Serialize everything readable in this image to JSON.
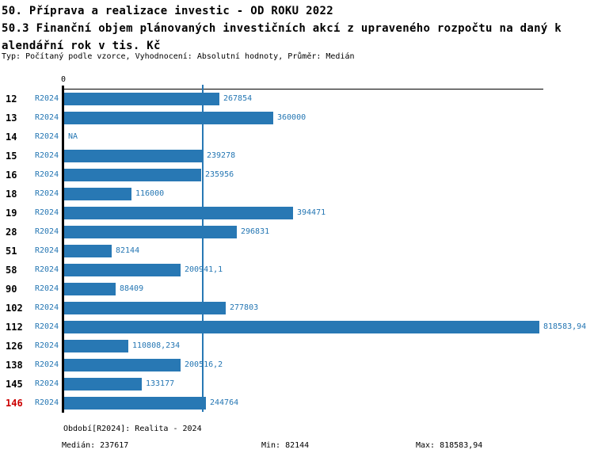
{
  "header": {
    "title_line1": "50. Příprava a realizace investic - OD ROKU 2022",
    "title_line2": "50.3 Finanční objem plánovaných investičních akcí z upraveného rozpočtu na daný k",
    "title_line3": "alendářní rok v tis. Kč",
    "subtitle": "Typ: Počítaný podle vzorce, Vyhodnocení: Absolutní hodnoty, Průměr: Medián"
  },
  "chart_data": {
    "type": "bar",
    "orientation": "horizontal",
    "title": "50. Příprava a realizace investic - OD ROKU 2022 / 50.3 Finanční objem plánovaných investičních akcí z upraveného rozpočtu na daný kalendářní rok v tis. Kč",
    "subtitle": "Typ: Počítaný podle vzorce, Vyhodnocení: Absolutní hodnoty, Průměr: Medián",
    "x_axis_ticks": [
      "0"
    ],
    "xlim": [
      0,
      818583.94
    ],
    "series_name": "R2024",
    "median_value": 237617,
    "min_value": 82144,
    "max_value": 818583.94,
    "x_max_value": 818583.94,
    "reference_line": "median",
    "rows": [
      {
        "id": "12",
        "period": "R2024",
        "value": 267854,
        "label": "267854",
        "highlight": false
      },
      {
        "id": "13",
        "period": "R2024",
        "value": 360000,
        "label": "360000",
        "highlight": false
      },
      {
        "id": "14",
        "period": "R2024",
        "value": null,
        "label": "NA",
        "highlight": false
      },
      {
        "id": "15",
        "period": "R2024",
        "value": 239278,
        "label": "239278",
        "highlight": false
      },
      {
        "id": "16",
        "period": "R2024",
        "value": 235956,
        "label": "235956",
        "highlight": false
      },
      {
        "id": "18",
        "period": "R2024",
        "value": 116000,
        "label": "116000",
        "highlight": false
      },
      {
        "id": "19",
        "period": "R2024",
        "value": 394471,
        "label": "394471",
        "highlight": false
      },
      {
        "id": "28",
        "period": "R2024",
        "value": 296831,
        "label": "296831",
        "highlight": false
      },
      {
        "id": "51",
        "period": "R2024",
        "value": 82144,
        "label": "82144",
        "highlight": false
      },
      {
        "id": "58",
        "period": "R2024",
        "value": 200941.1,
        "label": "200941,1",
        "highlight": false
      },
      {
        "id": "90",
        "period": "R2024",
        "value": 88409,
        "label": "88409",
        "highlight": false
      },
      {
        "id": "102",
        "period": "R2024",
        "value": 277803,
        "label": "277803",
        "highlight": false
      },
      {
        "id": "112",
        "period": "R2024",
        "value": 818583.94,
        "label": "818583,94",
        "highlight": false
      },
      {
        "id": "126",
        "period": "R2024",
        "value": 110808.234,
        "label": "110808,234",
        "highlight": false
      },
      {
        "id": "138",
        "period": "R2024",
        "value": 200516.2,
        "label": "200516,2",
        "highlight": false
      },
      {
        "id": "145",
        "period": "R2024",
        "value": 133177,
        "label": "133177",
        "highlight": false
      },
      {
        "id": "146",
        "period": "R2024",
        "value": 244764,
        "label": "244764",
        "highlight": true
      }
    ],
    "colors": {
      "bar": "#2878b4",
      "text_blue": "#2476b3",
      "axis_black": "#000000",
      "highlight_red": "#cc0000",
      "background": "#ffffff"
    }
  },
  "footer": {
    "period_info": "Období[R2024]: Realita - 2024",
    "median_label": "Medián: 237617",
    "min_label": "Min: 82144",
    "max_label": "Max: 818583,94"
  }
}
